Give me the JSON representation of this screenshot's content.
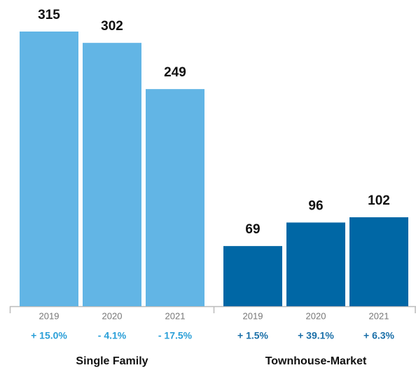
{
  "chart_data": {
    "type": "bar",
    "groups": [
      {
        "name": "Single Family",
        "color": "#62b5e5",
        "label_color": "#2a9fd8",
        "categories": [
          "2019",
          "2020",
          "2021"
        ],
        "values": [
          315,
          302,
          249
        ],
        "changes": [
          "+ 15.0%",
          "- 4.1%",
          "- 17.5%"
        ]
      },
      {
        "name": "Townhouse-Market",
        "color": "#0067a5",
        "label_color": "#1a6fa8",
        "categories": [
          "2019",
          "2020",
          "2021"
        ],
        "values": [
          69,
          96,
          102
        ],
        "changes": [
          "+ 1.5%",
          "+ 39.1%",
          "+ 6.3%"
        ]
      }
    ]
  }
}
